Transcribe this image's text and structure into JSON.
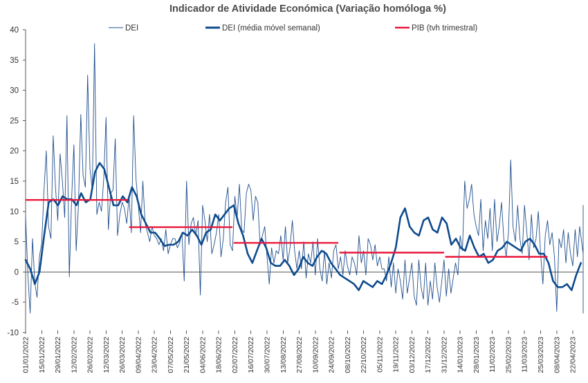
{
  "chart_data": {
    "type": "line",
    "title": "Indicador de Atividade Económica (Variação homóloga %)",
    "xlabel": "",
    "ylabel": "",
    "ylim": [
      -10,
      40
    ],
    "y_ticks": [
      -10,
      -5,
      0,
      5,
      10,
      15,
      20,
      25,
      30,
      35,
      40
    ],
    "grid": false,
    "legend_position": "top",
    "x_tick_labels": [
      "01/01/2022",
      "15/01/2022",
      "29/01/2022",
      "12/02/2022",
      "26/02/2022",
      "12/03/2022",
      "26/03/2022",
      "09/04/2022",
      "23/04/2022",
      "07/05/2022",
      "21/05/2022",
      "04/06/2022",
      "18/06/2022",
      "02/07/2022",
      "16/07/2022",
      "30/07/2022",
      "13/08/2022",
      "27/08/2022",
      "10/09/2022",
      "24/09/2022",
      "08/10/2022",
      "22/10/2022",
      "05/11/2022",
      "19/11/2022",
      "03/12/2022",
      "17/12/2022",
      "31/12/2022",
      "14/01/2023",
      "28/01/2023",
      "11/02/2023",
      "25/02/2023",
      "11/03/2023",
      "25/03/2023",
      "08/04/2023",
      "22/04/2023"
    ],
    "series": [
      {
        "name": "DEI",
        "style": "thin-line",
        "color": "#1f4e8c",
        "points_every_2_days": [
          9.2,
          -0.5,
          -6.8,
          5.5,
          -1.8,
          -4.2,
          2.5,
          4.8,
          13.5,
          20.0,
          7.5,
          5.5,
          22.5,
          14.0,
          8.5,
          19.5,
          15.0,
          9.0,
          25.8,
          -0.8,
          12.0,
          21.0,
          3.5,
          11.0,
          26.0,
          16.0,
          14.0,
          32.5,
          17.0,
          13.5,
          37.7,
          9.5,
          11.5,
          10.0,
          15.5,
          25.5,
          7.0,
          13.0,
          13.5,
          22.0,
          6.0,
          9.5,
          11.5,
          10.5,
          8.0,
          12.5,
          6.5,
          25.8,
          15.5,
          11.0,
          6.5,
          15.0,
          8.0,
          6.5,
          5.0,
          7.5,
          6.0,
          5.5,
          4.5,
          5.5,
          3.5,
          7.0,
          3.0,
          4.5,
          5.5,
          5.5,
          4.0,
          4.8,
          6.5,
          -1.5,
          15.0,
          4.5,
          8.0,
          9.0,
          6.0,
          8.5,
          -3.8,
          11.0,
          8.5,
          5.0,
          9.5,
          3.0,
          4.5,
          6.5,
          9.5,
          2.5,
          5.5,
          11.5,
          14.0,
          4.5,
          3.5,
          12.5,
          9.0,
          14.5,
          7.0,
          6.5,
          13.0,
          14.5,
          13.5,
          8.5,
          12.5,
          11.5,
          4.5,
          6.0,
          7.5,
          2.5,
          -2.0,
          4.0,
          1.5,
          3.5,
          3.0,
          6.0,
          2.0,
          7.5,
          1.5,
          4.0,
          8.5,
          3.5,
          0.5,
          3.5,
          0.5,
          5.0,
          -1.0,
          3.0,
          1.5,
          5.0,
          -0.5,
          5.5,
          0.5,
          -1.5,
          3.5,
          -2.0,
          1.5,
          -1.0,
          3.5,
          4.5,
          0.5,
          2.5,
          -0.5,
          3.5,
          1.0,
          -0.5,
          2.5,
          1.5,
          -0.5,
          6.0,
          1.5,
          3.5,
          -0.5,
          5.5,
          4.5,
          2.0,
          4.5,
          1.0,
          2.5,
          0.5,
          0.5,
          -1.5,
          2.5,
          -2.5,
          1.5,
          -3.5,
          0.5,
          -1.5,
          -4.5,
          2.0,
          -3.5,
          -1.0,
          1.5,
          -4.0,
          -5.5,
          2.0,
          -2.5,
          -4.5,
          1.5,
          -5.5,
          -1.5,
          -4.5,
          1.5,
          -2.5,
          -5.0,
          -1.5,
          2.0,
          -4.0,
          0.5,
          -3.5,
          -1.0,
          1.5,
          -0.5,
          6.0,
          3.5,
          15.0,
          10.5,
          12.0,
          14.5,
          9.5,
          7.5,
          6.0,
          12.0,
          3.5,
          8.5,
          5.5,
          10.5,
          3.5,
          12.0,
          5.0,
          7.5,
          11.5,
          5.5,
          2.5,
          6.5,
          18.5,
          7.5,
          5.0,
          11.0,
          5.5,
          3.0,
          11.0,
          6.5,
          2.0,
          9.5,
          4.0,
          5.5,
          10.0,
          3.0,
          -2.0,
          6.0,
          8.5,
          4.5,
          6.5,
          2.5,
          -6.5,
          5.5,
          4.0,
          7.0,
          1.5,
          6.5,
          3.0,
          1.0,
          7.0,
          2.5,
          7.5,
          4.5,
          3.0,
          7.0,
          2.5,
          5.5,
          1.5,
          6.0,
          3.0,
          8.0,
          2.5,
          10.5,
          4.5,
          11.0,
          2.5,
          7.5,
          6.0,
          2.0,
          9.0,
          4.5,
          -2.0,
          2.5,
          3.5,
          1.5,
          -5.5,
          -6.8,
          -1.5,
          6.5,
          -5.5,
          -6.0,
          1.5,
          3.5,
          3.8,
          0.2
        ]
      },
      {
        "name": "DEI (média móvel semanal)",
        "style": "thick-line",
        "color": "#0d4a8c",
        "points_weekly": [
          2.0,
          0.5,
          -2.0,
          0.0,
          6.0,
          11.5,
          12.0,
          11.0,
          12.5,
          12.0,
          12.0,
          11.0,
          13.0,
          11.5,
          12.0,
          16.5,
          18.0,
          17.0,
          14.0,
          11.0,
          11.0,
          12.5,
          11.5,
          14.0,
          12.5,
          9.5,
          8.0,
          6.5,
          6.5,
          5.5,
          4.3,
          4.5,
          4.5,
          5.0,
          6.5,
          6.0,
          7.0,
          6.0,
          4.5,
          6.5,
          7.0,
          9.5,
          8.5,
          9.5,
          10.5,
          11.0,
          8.0,
          6.0,
          3.0,
          1.5,
          3.5,
          5.5,
          4.0,
          1.5,
          1.0,
          1.0,
          2.0,
          1.0,
          -0.5,
          0.5,
          2.5,
          1.5,
          1.0,
          2.5,
          3.5,
          3.0,
          1.5,
          0.5,
          -0.5,
          -1.0,
          -1.5,
          -2.0,
          -3.0,
          -1.5,
          -2.0,
          -2.5,
          -1.5,
          -2.0,
          -0.5,
          1.5,
          4.0,
          9.0,
          10.5,
          7.5,
          6.5,
          6.0,
          8.5,
          9.0,
          7.0,
          6.5,
          9.0,
          8.0,
          4.5,
          5.5,
          4.0,
          3.5,
          6.0,
          4.0,
          2.5,
          3.0,
          1.5,
          2.0,
          3.5,
          4.0,
          5.0,
          4.5,
          4.0,
          3.5,
          5.0,
          5.5,
          4.5,
          3.0,
          3.0,
          1.5,
          -1.5,
          -2.5,
          -2.5,
          -2.0,
          -3.0,
          -0.5,
          1.5
        ]
      },
      {
        "name": "PIB (tvh trimestral)",
        "style": "step",
        "color": "#e8193c",
        "quarters": [
          {
            "start": "01/01/2022",
            "end": "31/03/2022",
            "value": 11.9
          },
          {
            "start": "01/04/2022",
            "end": "30/06/2022",
            "value": 7.4
          },
          {
            "start": "01/07/2022",
            "end": "30/09/2022",
            "value": 4.8
          },
          {
            "start": "01/10/2022",
            "end": "31/12/2022",
            "value": 3.2
          },
          {
            "start": "01/01/2023",
            "end": "31/03/2023",
            "value": 2.5
          }
        ]
      }
    ],
    "x_range_days": [
      0,
      485
    ]
  }
}
